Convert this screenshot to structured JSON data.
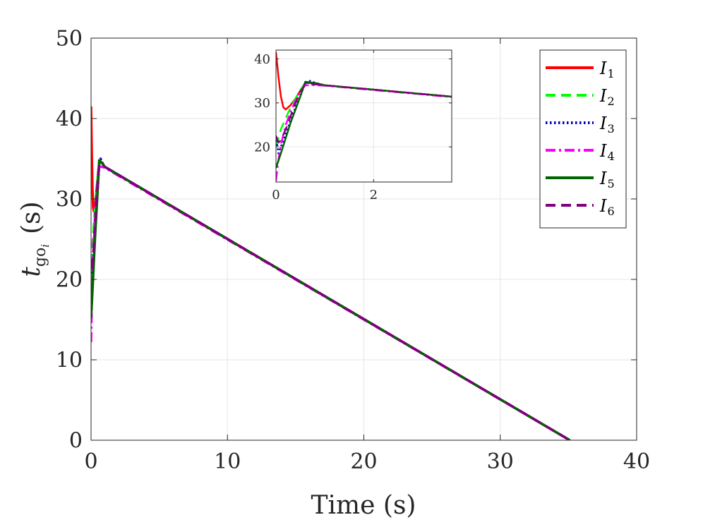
{
  "chart_data": [
    {
      "type": "line",
      "xlabel": "Time (s)",
      "ylabel_main": "t",
      "ylabel_sub": "go",
      "ylabel_subsub": "i",
      "ylabel_unit": "(s)",
      "xlim": [
        0,
        40
      ],
      "ylim": [
        0,
        50
      ],
      "xticks": [
        0,
        10,
        20,
        30,
        40
      ],
      "yticks": [
        0,
        10,
        20,
        30,
        40,
        50
      ],
      "grid": true,
      "legend": "top-right",
      "series": [
        {
          "name": "I",
          "sub": "1",
          "color": "#ff0000",
          "dash": "solid",
          "x": [
            0,
            0.05,
            0.1,
            0.15,
            0.2,
            0.3,
            0.4,
            0.5,
            0.6,
            0.8,
            1.0,
            35.1
          ],
          "y": [
            41.5,
            36,
            31.5,
            29,
            28.5,
            29.5,
            31,
            32.8,
            34.5,
            34.5,
            34.0,
            0
          ]
        },
        {
          "name": "I",
          "sub": "2",
          "color": "#00ff00",
          "dash": "dashed",
          "x": [
            0,
            0.1,
            0.2,
            0.3,
            0.4,
            0.5,
            0.6,
            0.8,
            1.0,
            35.1
          ],
          "y": [
            20,
            24,
            26.5,
            29,
            31,
            33,
            34.5,
            34.3,
            34.0,
            0
          ]
        },
        {
          "name": "I",
          "sub": "3",
          "color": "#0000cc",
          "dash": "dotted",
          "x": [
            0,
            0.05,
            0.1,
            0.2,
            0.3,
            0.4,
            0.5,
            0.6,
            0.7,
            0.8,
            1.0,
            35.1
          ],
          "y": [
            22.5,
            18.5,
            20,
            23,
            26,
            29,
            31.5,
            34.5,
            35,
            34.6,
            34.0,
            0
          ]
        },
        {
          "name": "I",
          "sub": "4",
          "color": "#ff00ff",
          "dash": "dashdot",
          "x": [
            0,
            0.05,
            0.1,
            0.2,
            0.3,
            0.4,
            0.5,
            0.6,
            0.8,
            1.0,
            35.1
          ],
          "y": [
            12.2,
            17,
            20.5,
            25,
            28,
            30.5,
            32.5,
            34.0,
            34.0,
            33.9,
            0
          ]
        },
        {
          "name": "I",
          "sub": "5",
          "color": "#006400",
          "dash": "solid",
          "x": [
            0,
            0.1,
            0.2,
            0.3,
            0.4,
            0.5,
            0.6,
            0.8,
            1.0,
            35.1
          ],
          "y": [
            15.2,
            18.5,
            22,
            25.5,
            28.5,
            31.5,
            34.8,
            34.5,
            34.0,
            0
          ]
        },
        {
          "name": "I",
          "sub": "6",
          "color": "#7f007f",
          "dash": "dashed",
          "x": [
            0,
            0.05,
            0.1,
            0.2,
            0.3,
            0.4,
            0.5,
            0.6,
            0.8,
            1.0,
            35.1
          ],
          "y": [
            22.5,
            21,
            21.5,
            24,
            27,
            30,
            32.5,
            34.3,
            34.2,
            34.0,
            0
          ]
        }
      ]
    },
    {
      "type": "line",
      "role": "inset",
      "xlim": [
        0,
        3.6
      ],
      "ylim": [
        12,
        42
      ],
      "xticks": [
        0,
        2
      ],
      "yticks": [
        20,
        30,
        40
      ],
      "grid": true
    }
  ]
}
